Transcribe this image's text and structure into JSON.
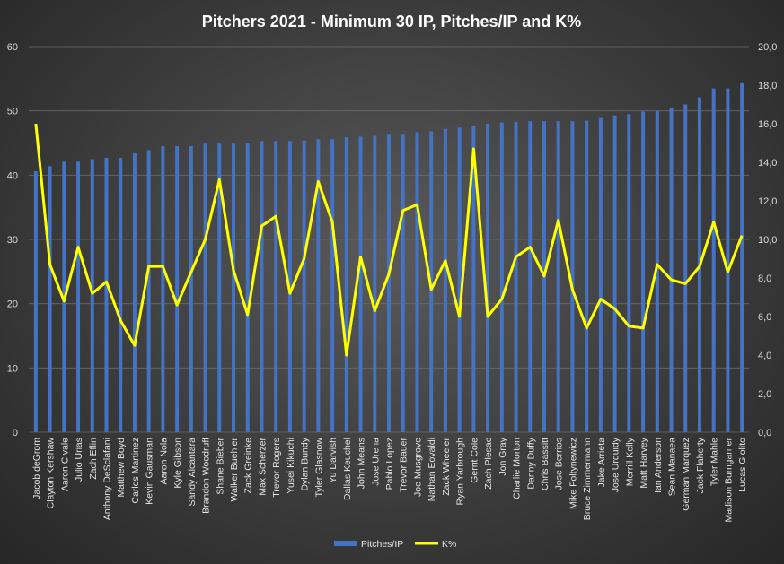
{
  "chart_data": {
    "type": "bar",
    "title": "Pitchers  2021 - Minimum  30 IP, Pitches/IP  and  K%",
    "categories": [
      "Jacob deGrom",
      "Clayton Kershaw",
      "Aaron Civale",
      "Julio Urias",
      "Zach Eflin",
      "Anthony DeSclafani",
      "Matthew Boyd",
      "Carlos Martinez",
      "Kevin Gausman",
      "Aaron Nola",
      "Kyle Gibson",
      "Sandy Alcantara",
      "Brandon Woodruff",
      "Shane Bieber",
      "Walker Buehler",
      "Zack Greinke",
      "Max Scherzer",
      "Trevor Rogers",
      "Yusei Kikuchi",
      "Dylan Bundy",
      "Tyler Glasnow",
      "Yu Darvish",
      "Dallas Keuchel",
      "John Means",
      "Jose Urena",
      "Pablo Lopez",
      "Trevor Bauer",
      "Joe Musgrove",
      "Nathan Eovaldi",
      "Zack Wheeler",
      "Ryan Yarbrough",
      "Gerrit Cole",
      "Zach Plesac",
      "Jon Gray",
      "Charlie Morton",
      "Danny Duffy",
      "Chris Bassitt",
      "Jose Berrios",
      "Mike Foltynewicz",
      "Bruce Zimmermann",
      "Jake Arrieta",
      "Jose Urquidy",
      "Merrill Kelly",
      "Matt Harvey",
      "Ian Anderson",
      "Sean Manaea",
      "German Marquez",
      "Jack Flaherty",
      "Tyler Mahle",
      "Madison Bumgarner",
      "Lucas Giolito"
    ],
    "series": [
      {
        "name": "Pitches/IP",
        "axis": "left",
        "chart_kind": "bar",
        "color": "#4472c4",
        "values": [
          40.6,
          41.4,
          42.1,
          42.1,
          42.5,
          42.7,
          42.7,
          43.4,
          43.9,
          44.5,
          44.5,
          44.5,
          44.9,
          44.9,
          44.9,
          45.0,
          45.3,
          45.3,
          45.3,
          45.4,
          45.6,
          45.6,
          45.9,
          46.0,
          46.1,
          46.3,
          46.3,
          46.7,
          46.8,
          47.2,
          47.4,
          47.7,
          48.0,
          48.2,
          48.3,
          48.4,
          48.4,
          48.4,
          48.4,
          48.5,
          48.9,
          49.3,
          49.5,
          49.9,
          50.0,
          50.5,
          51.0,
          52.1,
          53.5,
          53.5,
          54.3
        ]
      },
      {
        "name": "K%",
        "axis": "right",
        "chart_kind": "line",
        "color": "#ffff00",
        "values": [
          16.0,
          8.7,
          6.8,
          9.6,
          7.2,
          7.8,
          5.8,
          4.5,
          8.6,
          8.6,
          6.6,
          8.3,
          10.0,
          13.1,
          8.4,
          6.1,
          10.7,
          11.2,
          7.2,
          9.0,
          13.0,
          10.9,
          4.0,
          9.1,
          6.3,
          8.2,
          11.5,
          11.8,
          7.4,
          8.9,
          6.0,
          14.7,
          6.0,
          6.9,
          9.1,
          9.6,
          8.1,
          11.0,
          7.4,
          5.4,
          6.9,
          6.4,
          5.5,
          5.4,
          8.7,
          7.9,
          7.7,
          8.6,
          10.9,
          8.3,
          10.2
        ]
      }
    ],
    "y_left": {
      "ylim": [
        0,
        60
      ],
      "ticks": [
        "0",
        "10",
        "20",
        "30",
        "40",
        "50",
        "60"
      ]
    },
    "y_right": {
      "ylim": [
        0,
        20
      ],
      "ticks": [
        "0,0",
        "2,0",
        "4,0",
        "6,0",
        "8,0",
        "10,0",
        "12,0",
        "14,0",
        "16,0",
        "18,0",
        "20,0"
      ]
    },
    "grid": true,
    "legend_position": "bottom"
  }
}
